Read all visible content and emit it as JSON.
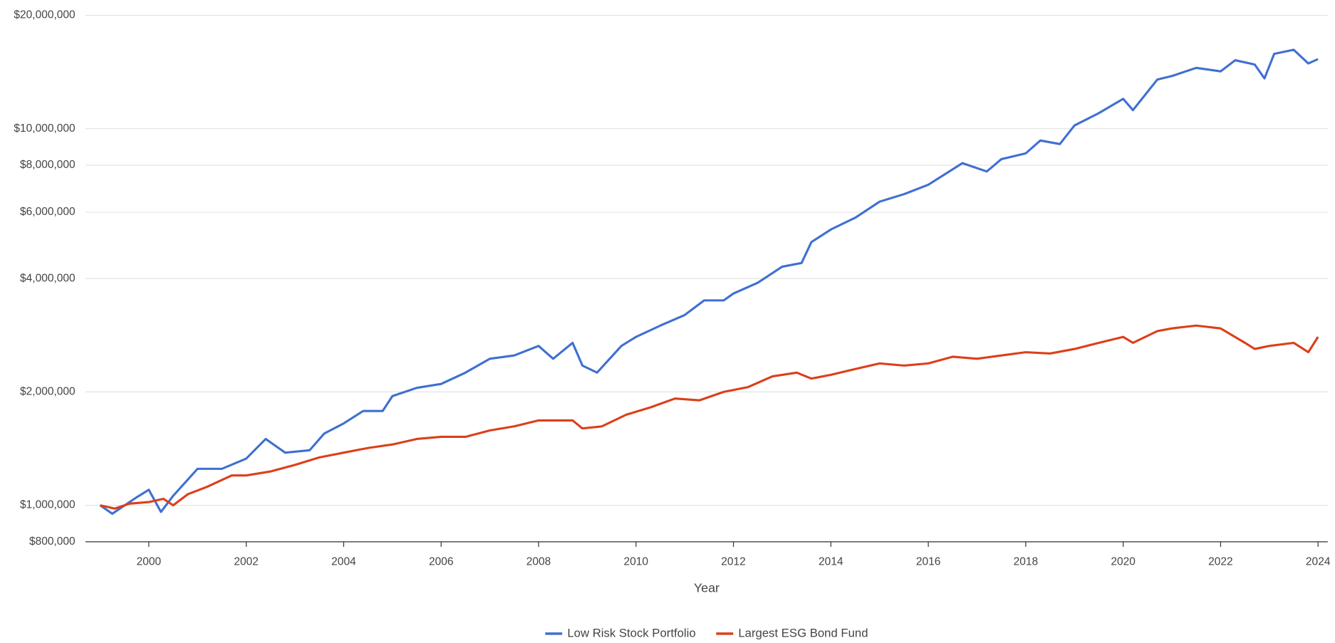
{
  "chart_data": {
    "type": "line",
    "x_label": "Year",
    "log_y": true,
    "grid": true,
    "legend": "bottom",
    "xlim": [
      1998.7,
      2024.2
    ],
    "xticks": [
      2000,
      2002,
      2004,
      2006,
      2008,
      2010,
      2012,
      2014,
      2016,
      2018,
      2020,
      2022,
      2024
    ],
    "ylim": [
      800000,
      20000000
    ],
    "yticks": [
      {
        "value": 800000,
        "label": "$800,000"
      },
      {
        "value": 1000000,
        "label": "$1,000,000"
      },
      {
        "value": 2000000,
        "label": "$2,000,000"
      },
      {
        "value": 4000000,
        "label": "$4,000,000"
      },
      {
        "value": 6000000,
        "label": "$6,000,000"
      },
      {
        "value": 8000000,
        "label": "$8,000,000"
      },
      {
        "value": 10000000,
        "label": "$10,000,000"
      },
      {
        "value": 20000000,
        "label": "$20,000,000"
      }
    ],
    "series": [
      {
        "name": "Low Risk Stock Portfolio",
        "color": "#3f6fd1",
        "x": [
          1999.0,
          1999.25,
          1999.75,
          2000.0,
          2000.25,
          2000.5,
          2001.0,
          2001.5,
          2002.0,
          2002.4,
          2002.8,
          2003.3,
          2003.6,
          2004.0,
          2004.4,
          2004.8,
          2005.0,
          2005.5,
          2006.0,
          2006.5,
          2007.0,
          2007.5,
          2008.0,
          2008.3,
          2008.7,
          2008.9,
          2009.2,
          2009.7,
          2010.0,
          2010.5,
          2011.0,
          2011.4,
          2011.8,
          2012.0,
          2012.5,
          2013.0,
          2013.4,
          2013.6,
          2014.0,
          2014.5,
          2015.0,
          2015.5,
          2016.0,
          2016.5,
          2016.7,
          2017.2,
          2017.5,
          2018.0,
          2018.3,
          2018.7,
          2019.0,
          2019.5,
          2020.0,
          2020.2,
          2020.7,
          2021.0,
          2021.5,
          2022.0,
          2022.3,
          2022.7,
          2022.9,
          2023.1,
          2023.5,
          2023.8,
          2024.0
        ],
        "values": [
          1000000,
          950000,
          1050000,
          1100000,
          960000,
          1060000,
          1250000,
          1250000,
          1330000,
          1500000,
          1380000,
          1400000,
          1550000,
          1650000,
          1780000,
          1780000,
          1950000,
          2050000,
          2100000,
          2250000,
          2450000,
          2500000,
          2650000,
          2450000,
          2700000,
          2350000,
          2250000,
          2650000,
          2800000,
          3000000,
          3200000,
          3500000,
          3500000,
          3650000,
          3900000,
          4300000,
          4400000,
          5000000,
          5400000,
          5800000,
          6400000,
          6700000,
          7100000,
          7800000,
          8100000,
          7700000,
          8300000,
          8600000,
          9300000,
          9100000,
          10200000,
          11000000,
          12000000,
          11200000,
          13500000,
          13800000,
          14500000,
          14200000,
          15200000,
          14800000,
          13600000,
          15800000,
          16200000,
          14900000,
          15300000
        ]
      },
      {
        "name": "Largest ESG Bond Fund",
        "color": "#dc3f1a",
        "x": [
          1999.0,
          1999.3,
          1999.6,
          2000.0,
          2000.3,
          2000.5,
          2000.8,
          2001.2,
          2001.7,
          2002.0,
          2002.5,
          2003.0,
          2003.5,
          2004.0,
          2004.5,
          2005.0,
          2005.5,
          2006.0,
          2006.5,
          2007.0,
          2007.5,
          2008.0,
          2008.7,
          2008.9,
          2009.3,
          2009.8,
          2010.3,
          2010.8,
          2011.3,
          2011.8,
          2012.3,
          2012.8,
          2013.3,
          2013.6,
          2014.0,
          2014.5,
          2015.0,
          2015.5,
          2016.0,
          2016.5,
          2017.0,
          2017.5,
          2018.0,
          2018.5,
          2019.0,
          2019.5,
          2020.0,
          2020.2,
          2020.7,
          2021.0,
          2021.5,
          2022.0,
          2022.5,
          2022.7,
          2023.0,
          2023.5,
          2023.8,
          2024.0
        ],
        "values": [
          1000000,
          980000,
          1010000,
          1020000,
          1040000,
          1000000,
          1070000,
          1120000,
          1200000,
          1200000,
          1230000,
          1280000,
          1340000,
          1380000,
          1420000,
          1450000,
          1500000,
          1520000,
          1520000,
          1580000,
          1620000,
          1680000,
          1680000,
          1600000,
          1620000,
          1740000,
          1820000,
          1920000,
          1900000,
          2000000,
          2060000,
          2200000,
          2250000,
          2170000,
          2220000,
          2300000,
          2380000,
          2350000,
          2380000,
          2480000,
          2450000,
          2500000,
          2550000,
          2530000,
          2600000,
          2700000,
          2800000,
          2700000,
          2900000,
          2950000,
          3000000,
          2950000,
          2700000,
          2600000,
          2650000,
          2700000,
          2550000,
          2800000
        ]
      }
    ]
  }
}
